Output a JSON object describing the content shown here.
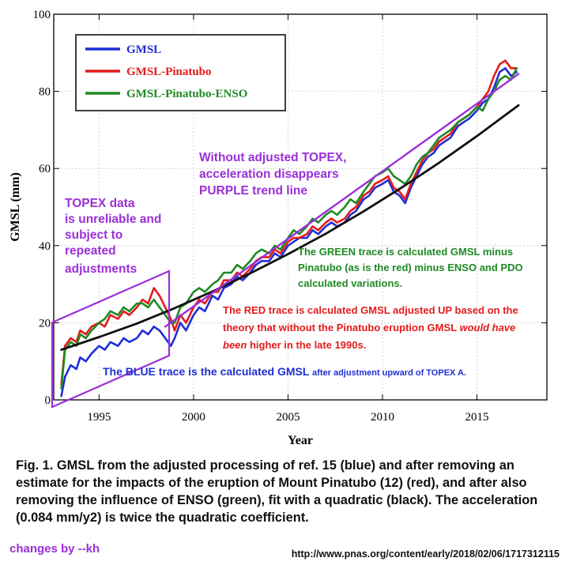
{
  "chart_data": {
    "type": "line",
    "xlabel": "Year",
    "ylabel": "GMSL (mm)",
    "xlim": [
      1992.6,
      2018.7
    ],
    "ylim": [
      0,
      100
    ],
    "x_ticks": [
      "1995",
      "2000",
      "2005",
      "2010",
      "2015"
    ],
    "y_ticks": [
      "0",
      "20",
      "40",
      "60",
      "80",
      "100"
    ],
    "legend_position": "top-left",
    "series": [
      {
        "name": "GMSL",
        "color": "#1f2fd6",
        "x": [
          1993.0,
          1993.2,
          1993.5,
          1993.8,
          1994.0,
          1994.3,
          1994.6,
          1995.0,
          1995.3,
          1995.6,
          1996.0,
          1996.3,
          1996.6,
          1997.0,
          1997.3,
          1997.6,
          1997.9,
          1998.2,
          1998.5,
          1998.8,
          1999.0,
          1999.3,
          1999.6,
          2000.0,
          2000.3,
          2000.6,
          2001.0,
          2001.3,
          2001.6,
          2002.0,
          2002.3,
          2002.6,
          2003.0,
          2003.3,
          2003.6,
          2004.0,
          2004.3,
          2004.6,
          2005.0,
          2005.3,
          2005.6,
          2006.0,
          2006.3,
          2006.6,
          2007.0,
          2007.3,
          2007.6,
          2008.0,
          2008.3,
          2008.6,
          2009.0,
          2009.3,
          2009.6,
          2010.0,
          2010.3,
          2010.6,
          2010.9,
          2011.2,
          2011.5,
          2011.8,
          2012.1,
          2012.4,
          2012.7,
          2013.0,
          2013.3,
          2013.6,
          2014.0,
          2014.3,
          2014.6,
          2015.0,
          2015.3,
          2015.6,
          2015.9,
          2016.2,
          2016.5,
          2016.8,
          2017.1
        ],
        "values": [
          1,
          6,
          9,
          8,
          11,
          10,
          12,
          14,
          13,
          15,
          14,
          16,
          15,
          16,
          18,
          17,
          19,
          18,
          16,
          14,
          16,
          20,
          18,
          22,
          24,
          23,
          27,
          26,
          29,
          30,
          32,
          31,
          33,
          35,
          36,
          36,
          38,
          37,
          40,
          41,
          42,
          42,
          44,
          43,
          45,
          46,
          45,
          46,
          48,
          49,
          52,
          53,
          55,
          56,
          57,
          54,
          53,
          51,
          55,
          58,
          61,
          63,
          64,
          66,
          67,
          68,
          71,
          72,
          73,
          75,
          77,
          78,
          81,
          85,
          86,
          84,
          85
        ]
      },
      {
        "name": "GMSL-Pinatubo",
        "color": "#e31b1b",
        "x": [
          1993.0,
          1993.2,
          1993.5,
          1993.8,
          1994.0,
          1994.3,
          1994.6,
          1995.0,
          1995.3,
          1995.6,
          1996.0,
          1996.3,
          1996.6,
          1997.0,
          1997.3,
          1997.6,
          1997.9,
          1998.2,
          1998.5,
          1998.8,
          1999.0,
          1999.3,
          1999.6,
          2000.0,
          2000.3,
          2000.6,
          2001.0,
          2001.3,
          2001.6,
          2002.0,
          2002.3,
          2002.6,
          2003.0,
          2003.3,
          2003.6,
          2004.0,
          2004.3,
          2004.6,
          2005.0,
          2005.3,
          2005.6,
          2006.0,
          2006.3,
          2006.6,
          2007.0,
          2007.3,
          2007.6,
          2008.0,
          2008.3,
          2008.6,
          2009.0,
          2009.3,
          2009.6,
          2010.0,
          2010.3,
          2010.6,
          2010.9,
          2011.2,
          2011.5,
          2011.8,
          2012.1,
          2012.4,
          2012.7,
          2013.0,
          2013.3,
          2013.6,
          2014.0,
          2014.3,
          2014.6,
          2015.0,
          2015.3,
          2015.6,
          2015.9,
          2016.2,
          2016.5,
          2016.8,
          2017.1
        ],
        "values": [
          4,
          14,
          16,
          15,
          18,
          17,
          19,
          20,
          19,
          22,
          21,
          23,
          22,
          24,
          26,
          25,
          29,
          27,
          24,
          21,
          18,
          22,
          20,
          24,
          26,
          25,
          28,
          28,
          31,
          31,
          33,
          32,
          34,
          36,
          37,
          37,
          39,
          38,
          41,
          42,
          42,
          43,
          45,
          44,
          46,
          47,
          46,
          47,
          49,
          50,
          53,
          54,
          56,
          57,
          58,
          55,
          54,
          52,
          56,
          59,
          62,
          64,
          65,
          67,
          68,
          69,
          72,
          73,
          74,
          76,
          78,
          80,
          84,
          87,
          88,
          86,
          86
        ]
      },
      {
        "name": "GMSL-Pinatubo-ENSO",
        "color": "#1f8a23",
        "x": [
          1993.0,
          1993.2,
          1993.5,
          1993.8,
          1994.0,
          1994.3,
          1994.6,
          1995.0,
          1995.3,
          1995.6,
          1996.0,
          1996.3,
          1996.6,
          1997.0,
          1997.3,
          1997.6,
          1997.9,
          1998.2,
          1998.5,
          1998.8,
          1999.0,
          1999.3,
          1999.6,
          2000.0,
          2000.3,
          2000.6,
          2001.0,
          2001.3,
          2001.6,
          2002.0,
          2002.3,
          2002.6,
          2003.0,
          2003.3,
          2003.6,
          2004.0,
          2004.3,
          2004.6,
          2005.0,
          2005.3,
          2005.6,
          2006.0,
          2006.3,
          2006.6,
          2007.0,
          2007.3,
          2007.6,
          2008.0,
          2008.3,
          2008.6,
          2009.0,
          2009.3,
          2009.6,
          2010.0,
          2010.3,
          2010.6,
          2010.9,
          2011.2,
          2011.5,
          2011.8,
          2012.1,
          2012.4,
          2012.7,
          2013.0,
          2013.3,
          2013.6,
          2014.0,
          2014.3,
          2014.6,
          2015.0,
          2015.3,
          2015.6,
          2015.9,
          2016.2,
          2016.5,
          2016.8,
          2017.1
        ],
        "values": [
          3,
          13,
          15,
          14,
          17,
          16,
          18,
          20,
          21,
          23,
          22,
          24,
          23,
          25,
          25,
          24,
          26,
          24,
          22,
          20,
          20,
          24,
          25,
          28,
          29,
          28,
          30,
          31,
          33,
          33,
          35,
          34,
          36,
          38,
          39,
          38,
          40,
          39,
          42,
          44,
          43,
          45,
          47,
          46,
          48,
          49,
          48,
          50,
          52,
          51,
          54,
          56,
          58,
          59,
          60,
          58,
          57,
          56,
          58,
          61,
          63,
          64,
          66,
          68,
          69,
          70,
          72,
          73,
          74,
          76,
          75,
          78,
          80,
          83,
          84,
          83,
          86
        ]
      },
      {
        "name": "",
        "color": "#111111",
        "x": [
          1993.0,
          1995.0,
          1997.0,
          1999.0,
          2001.0,
          2003.0,
          2005.0,
          2007.0,
          2009.0,
          2011.0,
          2013.0,
          2015.0,
          2017.2
        ],
        "values": [
          13,
          16.3,
          19.8,
          23.8,
          28.1,
          32.8,
          37.8,
          43.1,
          48.9,
          55.0,
          61.5,
          68.4,
          76.4
        ]
      },
      {
        "name": "",
        "color": "#9b2fd8",
        "x": [
          1998.5,
          2017.2
        ],
        "values": [
          19,
          84.5
        ]
      }
    ]
  },
  "annotations": {
    "topex_note": [
      "TOPEX data",
      "is unreliable and",
      "subject to",
      "repeated",
      "adjustments"
    ],
    "purple_note": [
      "Without adjusted TOPEX,",
      "acceleration disappears",
      "PURPLE trend line"
    ],
    "green_note": [
      "The GREEN  trace is calculated GMSL minus",
      "Pinatubo (as is the red) minus ENSO and PDO",
      "calculated  variations."
    ],
    "red_note": [
      "The RED trace is calculated GMSL adjusted UP based on the",
      "theory that without the Pinatubo eruption GMSL ",
      "would have",
      "been",
      " higher in the late 1990s."
    ],
    "blue_note": [
      "The BLUE trace is the calculated GMSL ",
      "after adjustment upward of TOPEX A."
    ],
    "colors": {
      "purple": "#9b2fd8",
      "green": "#1f8a23",
      "red": "#e31b1b",
      "blue": "#1f2fd6"
    }
  },
  "caption": "Fig. 1. GMSL from the adjusted processing of ref. 15 (blue) and after removing an estimate for the impacts of the eruption of Mount Pinatubo (12) (red), and after also removing the influence of ENSO (green), fit with a quadratic (black). The acceleration (0.084 mm/y2) is twice the quadratic coefficient.",
  "footer": {
    "changes": "changes by --kh",
    "url": "http://www.pnas.org/content/early/2018/02/06/1717312115"
  }
}
